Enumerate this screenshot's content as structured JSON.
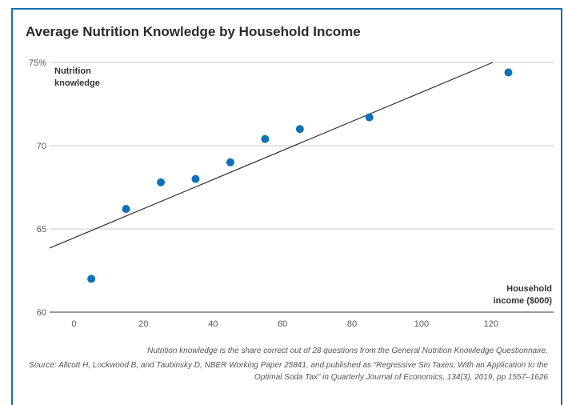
{
  "title": "Average Nutrition Knowledge by Household Income",
  "footnote": "Nutrition knowledge is the share correct out of 28 questions from the General Nutrition Knowledge Questionnaire.",
  "source": "Source: Allcott H, Lockwood B, and Taubinsky D, NBER Working Paper 25841, and published as “Regressive Sin Taxes, With an Application to the Optimal Soda Tax” in Quarterly Journal of Economics, 134(3), 2019, pp 1557–1626",
  "colors": {
    "accent": "#1a6fb0",
    "point": "#0b72b9",
    "line": "#333333",
    "grid": "#c8c8c8"
  },
  "chart_data": {
    "type": "scatter",
    "title": "Average Nutrition Knowledge by Household Income",
    "ylabel": "Nutrition knowledge",
    "xlabel": "Household income ($000)",
    "x_ticks": [
      "0",
      "20",
      "40",
      "60",
      "80",
      "100",
      "120"
    ],
    "y_ticks": [
      "60",
      "65",
      "70",
      "75%"
    ],
    "xlim": [
      -7,
      138
    ],
    "ylim": [
      60,
      75
    ],
    "grid": "horizontal",
    "points": [
      {
        "x": 5,
        "y": 62.0
      },
      {
        "x": 15,
        "y": 66.2
      },
      {
        "x": 25,
        "y": 67.8
      },
      {
        "x": 35,
        "y": 68.0
      },
      {
        "x": 45,
        "y": 69.0
      },
      {
        "x": 55,
        "y": 70.4
      },
      {
        "x": 65,
        "y": 71.0
      },
      {
        "x": 85,
        "y": 71.7
      },
      {
        "x": 125,
        "y": 74.4
      }
    ],
    "trend_line": {
      "x": [
        -7,
        120.5
      ],
      "y": [
        63.85,
        75.0
      ]
    }
  }
}
